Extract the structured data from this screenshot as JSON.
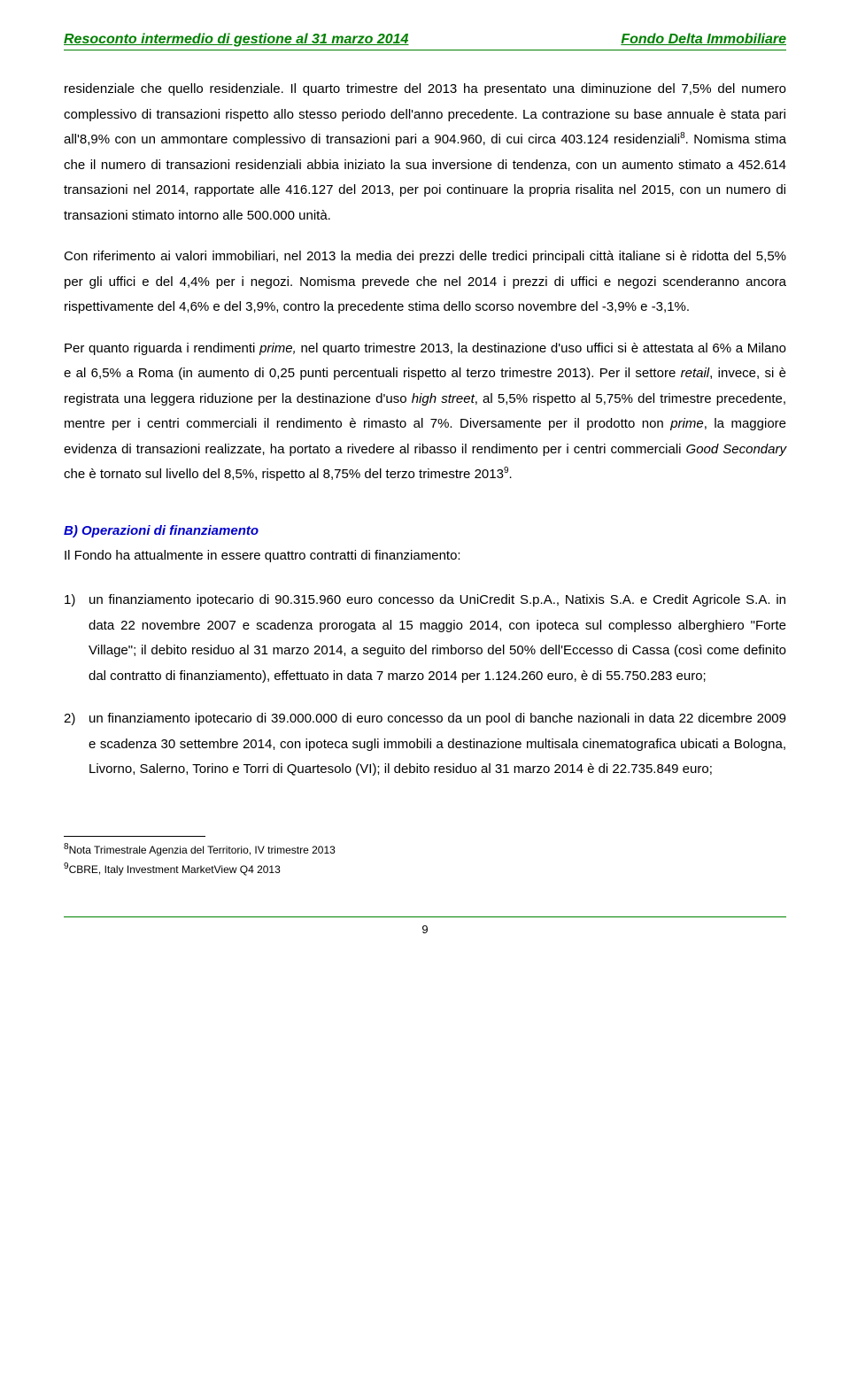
{
  "header": {
    "left": "Resoconto intermedio di gestione al 31 marzo 2014",
    "right": "Fondo Delta Immobiliare"
  },
  "paragraphs": {
    "p1_a": "residenziale che quello residenziale. Il quarto trimestre del 2013 ha presentato una diminuzione del 7,5% del numero complessivo di transazioni rispetto allo stesso periodo dell'anno precedente. La contrazione su base annuale è stata pari all'8,9% con un ammontare complessivo di transazioni pari a 904.960, di cui circa 403.124 residenziali",
    "p1_sup": "8",
    "p1_b": ". Nomisma stima che il numero di transazioni residenziali abbia iniziato la sua inversione di tendenza, con un aumento stimato a 452.614 transazioni nel 2014, rapportate alle 416.127 del 2013, per poi continuare la propria risalita nel 2015, con un numero di transazioni stimato intorno alle 500.000 unità.",
    "p2": "Con riferimento ai valori immobiliari, nel 2013 la media dei prezzi delle tredici principali città italiane si è ridotta del 5,5% per gli uffici e del 4,4% per i negozi. Nomisma prevede che nel 2014 i prezzi di uffici e negozi scenderanno ancora rispettivamente del 4,6% e del 3,9%, contro la precedente stima dello scorso novembre del -3,9% e -3,1%.",
    "p3_a": "Per quanto riguarda i rendimenti ",
    "p3_b": "prime,",
    "p3_c": " nel quarto trimestre 2013, la destinazione d'uso uffici si è attestata al 6% a Milano e al 6,5% a Roma (in aumento di 0,25 punti percentuali rispetto al terzo trimestre 2013). Per il settore ",
    "p3_d": "retail",
    "p3_e": ", invece, si è registrata una leggera riduzione per la destinazione d'uso ",
    "p3_f": "high street",
    "p3_g": ", al 5,5% rispetto al 5,75% del trimestre precedente, mentre per i centri commerciali il rendimento è rimasto al 7%. Diversamente per il prodotto non ",
    "p3_h": "prime",
    "p3_i": ", la maggiore evidenza di transazioni realizzate, ha portato a rivedere al ribasso il rendimento per i centri commerciali ",
    "p3_j": "Good Secondary",
    "p3_k": " che è tornato sul livello del 8,5%, rispetto al 8,75% del terzo trimestre 2013",
    "p3_sup": "9",
    "p3_l": "."
  },
  "section_b": {
    "heading": "B)  Operazioni di finanziamento",
    "intro": "Il Fondo ha attualmente in essere quattro contratti di finanziamento:",
    "item1_num": "1)",
    "item1_text": "un finanziamento ipotecario di 90.315.960 euro concesso da UniCredit S.p.A., Natixis S.A. e Credit Agricole S.A. in data 22 novembre 2007 e scadenza prorogata al 15 maggio 2014, con ipoteca sul complesso alberghiero \"Forte Village\"; il debito residuo al 31 marzo 2014, a seguito del rimborso del 50% dell'Eccesso di Cassa (così come definito dal contratto di finanziamento), effettuato in data 7 marzo 2014 per 1.124.260 euro, è di 55.750.283 euro;",
    "item2_num": "2)",
    "item2_text": "un finanziamento ipotecario di 39.000.000 di euro concesso da un pool di banche nazionali in data 22 dicembre 2009 e scadenza 30 settembre 2014, con ipoteca sugli immobili a destinazione multisala cinematografica ubicati a Bologna, Livorno, Salerno, Torino e Torri di Quartesolo (VI); il debito residuo al 31 marzo 2014 è di 22.735.849 euro;"
  },
  "footnotes": {
    "f8_sup": "8",
    "f8": "Nota Trimestrale Agenzia del Territorio, IV trimestre 2013",
    "f9_sup": "9",
    "f9": "CBRE, Italy Investment MarketView Q4 2013"
  },
  "page_number": "9"
}
